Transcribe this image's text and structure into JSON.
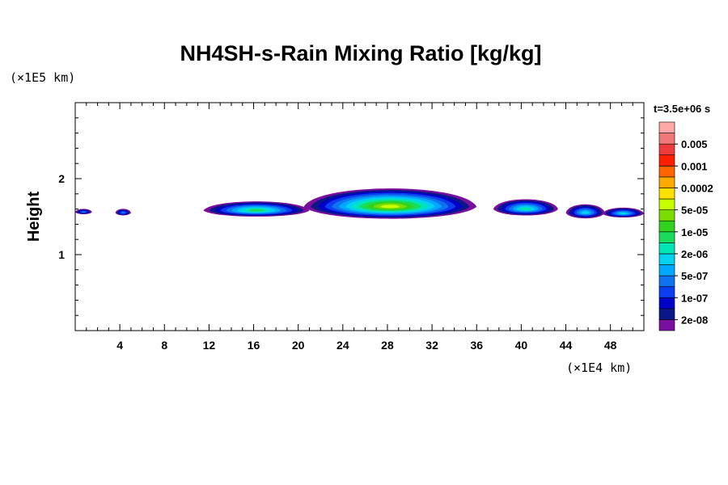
{
  "chart_data": {
    "type": "contour",
    "title": "NH4SH-s-Rain Mixing Ratio [kg/kg]",
    "ylabel": "Height",
    "xunit": "(×1E4 km)",
    "yunit": "(×1E5 km)",
    "time_label": "t=3.5e+06 s",
    "xlim": [
      0,
      51
    ],
    "ylim": [
      0,
      3
    ],
    "x_ticks": [
      4,
      8,
      12,
      16,
      20,
      24,
      28,
      32,
      36,
      40,
      44,
      48
    ],
    "x_tick_labels": [
      "4",
      "8",
      "12",
      "16",
      "20",
      "24",
      "28",
      "32",
      "36",
      "40",
      "44",
      "48"
    ],
    "y_ticks": [
      1,
      2
    ],
    "y_tick_labels": [
      "1",
      "2"
    ],
    "x_minor_step": 1,
    "y_minor_step": 0.2,
    "colorbar": {
      "colors": [
        "#7a0f9f",
        "#0b1787",
        "#0000c8",
        "#0a3ef0",
        "#0f73f0",
        "#00a8ff",
        "#00d2f0",
        "#00e6b4",
        "#18dc5a",
        "#30d21e",
        "#78dc00",
        "#c8ff00",
        "#ffe100",
        "#ffaa00",
        "#ff6400",
        "#ff1e00",
        "#f03c3c",
        "#f07878",
        "#ffa8a8"
      ],
      "labels": [
        "2e-08",
        "1e-07",
        "5e-07",
        "2e-06",
        "1e-05",
        "5e-05",
        "0.0002",
        "0.001",
        "0.005"
      ]
    },
    "blobs": [
      {
        "x0": 0.0,
        "x1": 1.5,
        "y": 1.56,
        "half_thickness": 0.05,
        "peak_level": 4
      },
      {
        "x0": 3.6,
        "x1": 5.0,
        "y": 1.55,
        "half_thickness": 0.06,
        "peak_level": 4
      },
      {
        "x0": 11.5,
        "x1": 21.0,
        "y": 1.58,
        "half_thickness": 0.14,
        "peak_level": 8
      },
      {
        "x0": 20.5,
        "x1": 36.0,
        "y": 1.63,
        "half_thickness": 0.28,
        "peak_level": 11
      },
      {
        "x0": 37.5,
        "x1": 43.3,
        "y": 1.6,
        "half_thickness": 0.15,
        "peak_level": 7
      },
      {
        "x0": 44.0,
        "x1": 47.5,
        "y": 1.55,
        "half_thickness": 0.13,
        "peak_level": 6
      },
      {
        "x0": 47.3,
        "x1": 51.0,
        "y": 1.54,
        "half_thickness": 0.09,
        "peak_level": 6
      }
    ]
  }
}
